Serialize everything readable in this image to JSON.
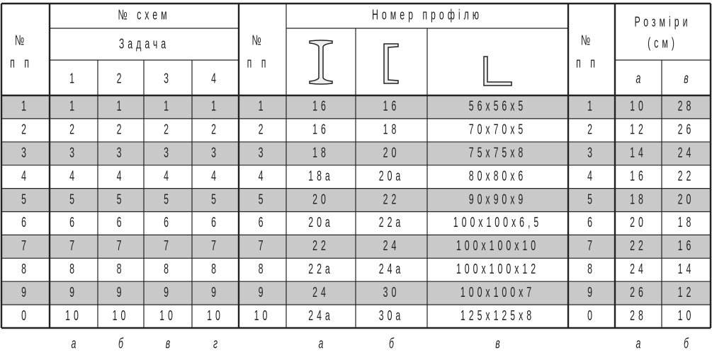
{
  "header": {
    "no_cols": [
      [
        "№",
        "п п"
      ],
      [
        "№",
        "п п"
      ],
      [
        "№",
        "п п"
      ]
    ],
    "schemes_title": "№ схем",
    "task": "Задача",
    "task_cols": [
      "1",
      "2",
      "3",
      "4"
    ],
    "profile_title": "Номер профілю",
    "sizes_title": [
      "Розміри",
      "(см)"
    ],
    "size_cols": [
      "а",
      "в"
    ]
  },
  "rows": [
    [
      "1",
      "1",
      "1",
      "1",
      "1",
      "1",
      "16",
      "16",
      "56x56x5",
      "1",
      "10",
      "28"
    ],
    [
      "2",
      "2",
      "2",
      "2",
      "2",
      "2",
      "16",
      "18",
      "70x70x5",
      "2",
      "12",
      "26"
    ],
    [
      "3",
      "3",
      "3",
      "3",
      "3",
      "3",
      "18",
      "20",
      "75x75x8",
      "3",
      "14",
      "24"
    ],
    [
      "4",
      "4",
      "4",
      "4",
      "4",
      "4",
      "18а",
      "20а",
      "80x80x6",
      "4",
      "16",
      "22"
    ],
    [
      "5",
      "5",
      "5",
      "5",
      "5",
      "5",
      "20",
      "22",
      "90x90x9",
      "5",
      "18",
      "20"
    ],
    [
      "6",
      "6",
      "6",
      "6",
      "6",
      "6",
      "20а",
      "22а",
      "100x100x6,5",
      "6",
      "20",
      "18"
    ],
    [
      "7",
      "7",
      "7",
      "7",
      "7",
      "7",
      "22",
      "24",
      "100x100x10",
      "7",
      "22",
      "16"
    ],
    [
      "8",
      "8",
      "8",
      "8",
      "8",
      "8",
      "22а",
      "24а",
      "100x100x12",
      "8",
      "24",
      "14"
    ],
    [
      "9",
      "9",
      "9",
      "9",
      "9",
      "9",
      "24",
      "30",
      "100x100x7",
      "9",
      "26",
      "12"
    ],
    [
      "0",
      "10",
      "10",
      "10",
      "10",
      "10",
      "24а",
      "30а",
      "125x125x8",
      "0",
      "28",
      "10"
    ]
  ],
  "footer": [
    "а",
    "б",
    "в",
    "г",
    "а",
    "б",
    "в",
    "а",
    "б"
  ]
}
